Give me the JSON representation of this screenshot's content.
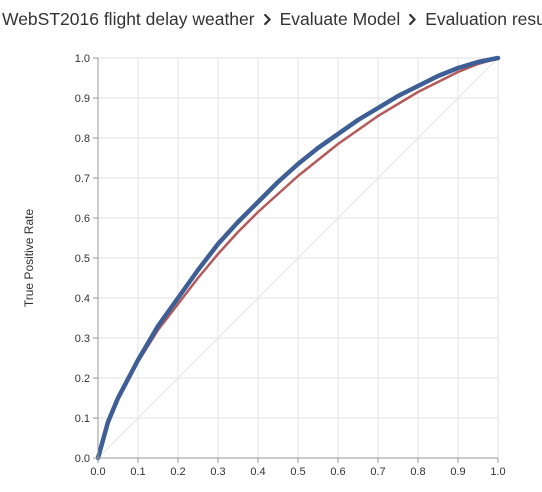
{
  "breadcrumb": {
    "experiment": "WebST2016 flight delay weather",
    "module": "Evaluate Model",
    "page": "Evaluation results"
  },
  "icons": {
    "separator": "chevron-right-icon"
  },
  "colors": {
    "text": "#333333",
    "axis": "#999999",
    "grid": "#e2e2e2",
    "diagonal": "#e6e6e6",
    "series_1": "#3d5f95",
    "series_2": "#b55a5a"
  },
  "chart_data": {
    "type": "line",
    "xlabel": "",
    "ylabel": "True Positive Rate",
    "xlim": [
      0,
      1
    ],
    "ylim": [
      0,
      1
    ],
    "xticks": [
      "0.0",
      "0.1",
      "0.2",
      "0.3",
      "0.4",
      "0.5",
      "0.6",
      "0.7",
      "0.8",
      "0.9",
      "1.0"
    ],
    "yticks": [
      "0.0",
      "0.1",
      "0.2",
      "0.3",
      "0.4",
      "0.5",
      "0.6",
      "0.7",
      "0.8",
      "0.9",
      "1.0"
    ],
    "grid": true,
    "reference_line": {
      "x": [
        0,
        1
      ],
      "y": [
        0,
        1
      ]
    },
    "series": [
      {
        "color": "#3d5f95",
        "x": [
          0,
          0.025,
          0.05,
          0.1,
          0.15,
          0.2,
          0.25,
          0.3,
          0.35,
          0.4,
          0.45,
          0.5,
          0.55,
          0.6,
          0.65,
          0.7,
          0.75,
          0.8,
          0.85,
          0.9,
          0.95,
          1.0
        ],
        "y": [
          0,
          0.09,
          0.15,
          0.245,
          0.33,
          0.4,
          0.47,
          0.535,
          0.59,
          0.64,
          0.69,
          0.735,
          0.775,
          0.81,
          0.845,
          0.875,
          0.905,
          0.93,
          0.955,
          0.975,
          0.99,
          1.0
        ]
      },
      {
        "color": "#b55a5a",
        "x": [
          0,
          0.025,
          0.05,
          0.1,
          0.15,
          0.2,
          0.25,
          0.3,
          0.35,
          0.4,
          0.45,
          0.5,
          0.55,
          0.6,
          0.65,
          0.7,
          0.75,
          0.8,
          0.85,
          0.9,
          0.95,
          1.0
        ],
        "y": [
          0,
          0.085,
          0.145,
          0.24,
          0.32,
          0.385,
          0.45,
          0.51,
          0.565,
          0.615,
          0.66,
          0.705,
          0.745,
          0.785,
          0.82,
          0.855,
          0.885,
          0.915,
          0.94,
          0.965,
          0.985,
          1.0
        ]
      }
    ]
  }
}
